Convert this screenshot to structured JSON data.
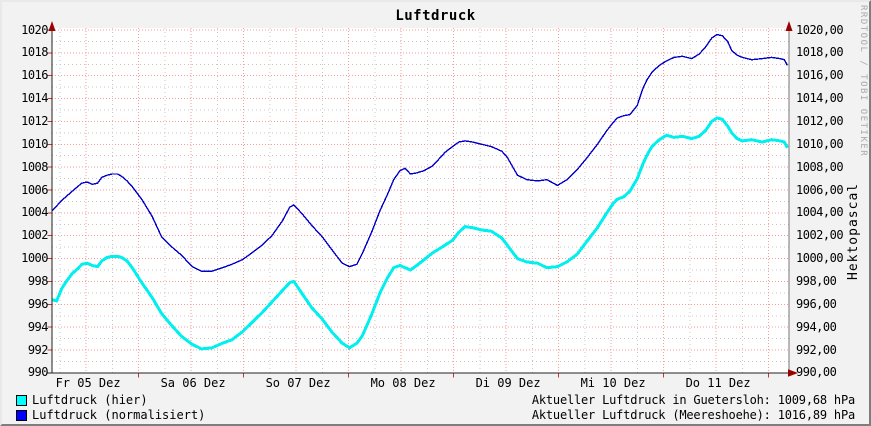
{
  "title": "Luftdruck",
  "watermark": "RRDTOOL / TOBI OETIKER",
  "right_axis_label": "Hektopascal",
  "legend": [
    {
      "label": "Luftdruck (hier)",
      "color": "#00ffff"
    },
    {
      "label": "Luftdruck (normalisiert)",
      "color": "#0000ff"
    }
  ],
  "footer_lines": [
    "Aktueller Luftdruck in Guetersloh: 1009,68 hPa",
    "Aktueller Luftdruck (Meereshoehe): 1016,89 hPa"
  ],
  "colors": {
    "background": "#f2f2f2",
    "canvas": "#ffffff",
    "grid_major": "#f59c9c",
    "grid_minor": "#c8c8c8",
    "axis": "#222222",
    "right_axis": "#777777",
    "tick": "#c03a3a",
    "arrow": "#9b0000"
  },
  "chart_data": {
    "type": "line",
    "title": "Luftdruck",
    "ylabel_right": "Hektopascal",
    "unit": "hPa",
    "ylim": [
      990,
      1020
    ],
    "y_tick_step": 2,
    "x_range_days": [
      0.176,
      7.195
    ],
    "x_axis_note": "time axis, ca. 7 Tage: Fr 05 Dez bis Do 11 Dez, Gitter alle 6 h",
    "grid": "rot gestrichelt: 2 hPa / 12 h Hauptraster, grau gepunktet: 1 hPa / 6 h Nebenraster",
    "legend_position": "bottom-left",
    "y_ticks": [
      {
        "v": 1020,
        "left": "1020",
        "right": "1020,00"
      },
      {
        "v": 1018,
        "left": "1018",
        "right": "1018,00"
      },
      {
        "v": 1016,
        "left": "1016",
        "right": "1016,00"
      },
      {
        "v": 1014,
        "left": "1014",
        "right": "1014,00"
      },
      {
        "v": 1012,
        "left": "1012",
        "right": "1012,00"
      },
      {
        "v": 1010,
        "left": "1010",
        "right": "1010,00"
      },
      {
        "v": 1008,
        "left": "1008",
        "right": "1008,00"
      },
      {
        "v": 1006,
        "left": "1006",
        "right": "1006,00"
      },
      {
        "v": 1004,
        "left": "1004",
        "right": "1004,00"
      },
      {
        "v": 1002,
        "left": "1002",
        "right": "1002,00"
      },
      {
        "v": 1000,
        "left": "1000",
        "right": "1000,00"
      },
      {
        "v": 998,
        "left": "998",
        "right": "998,00"
      },
      {
        "v": 996,
        "left": "996",
        "right": "996,00"
      },
      {
        "v": 994,
        "left": "994",
        "right": "994,00"
      },
      {
        "v": 992,
        "left": "992",
        "right": "992,00"
      },
      {
        "v": 990,
        "left": "990",
        "right": "990,00"
      }
    ],
    "x_ticks": [
      {
        "day": 0.52,
        "label": "Fr 05 Dez"
      },
      {
        "day": 1.52,
        "label": "Sa 06 Dez"
      },
      {
        "day": 2.52,
        "label": "So 07 Dez"
      },
      {
        "day": 3.52,
        "label": "Mo 08 Dez"
      },
      {
        "day": 4.52,
        "label": "Di 09 Dez"
      },
      {
        "day": 5.52,
        "label": "Mi 10 Dez"
      },
      {
        "day": 6.52,
        "label": "Do 11 Dez"
      }
    ],
    "series": [
      {
        "name": "Luftdruck (hier)",
        "color": "#00efef",
        "width": 3,
        "current": "1009,68 hPa",
        "points": [
          [
            0.18,
            996.4
          ],
          [
            0.22,
            996.3
          ],
          [
            0.27,
            997.4
          ],
          [
            0.32,
            998.1
          ],
          [
            0.37,
            998.7
          ],
          [
            0.42,
            999.1
          ],
          [
            0.46,
            999.5
          ],
          [
            0.51,
            999.6
          ],
          [
            0.56,
            999.4
          ],
          [
            0.61,
            999.3
          ],
          [
            0.65,
            999.8
          ],
          [
            0.7,
            1000.1
          ],
          [
            0.75,
            1000.2
          ],
          [
            0.8,
            1000.2
          ],
          [
            0.84,
            1000.1
          ],
          [
            0.89,
            999.8
          ],
          [
            0.94,
            999.2
          ],
          [
            1.03,
            997.9
          ],
          [
            1.13,
            996.6
          ],
          [
            1.22,
            995.2
          ],
          [
            1.32,
            994.1
          ],
          [
            1.41,
            993.2
          ],
          [
            1.51,
            992.5
          ],
          [
            1.6,
            992.1
          ],
          [
            1.7,
            992.2
          ],
          [
            1.8,
            992.6
          ],
          [
            1.89,
            992.9
          ],
          [
            1.99,
            993.6
          ],
          [
            2.08,
            994.4
          ],
          [
            2.18,
            995.3
          ],
          [
            2.27,
            996.2
          ],
          [
            2.37,
            997.2
          ],
          [
            2.44,
            997.9
          ],
          [
            2.48,
            998.0
          ],
          [
            2.56,
            996.9
          ],
          [
            2.65,
            995.7
          ],
          [
            2.75,
            994.7
          ],
          [
            2.84,
            993.6
          ],
          [
            2.94,
            992.6
          ],
          [
            3.01,
            992.2
          ],
          [
            3.08,
            992.6
          ],
          [
            3.13,
            993.2
          ],
          [
            3.22,
            995.1
          ],
          [
            3.3,
            997.0
          ],
          [
            3.37,
            998.3
          ],
          [
            3.43,
            999.2
          ],
          [
            3.49,
            999.4
          ],
          [
            3.59,
            999.0
          ],
          [
            3.65,
            999.4
          ],
          [
            3.72,
            999.9
          ],
          [
            3.8,
            1000.5
          ],
          [
            3.89,
            1001.0
          ],
          [
            3.99,
            1001.6
          ],
          [
            4.05,
            1002.3
          ],
          [
            4.11,
            1002.8
          ],
          [
            4.18,
            1002.7
          ],
          [
            4.27,
            1002.5
          ],
          [
            4.36,
            1002.4
          ],
          [
            4.46,
            1001.8
          ],
          [
            4.55,
            1000.7
          ],
          [
            4.61,
            1000.0
          ],
          [
            4.7,
            999.7
          ],
          [
            4.8,
            999.6
          ],
          [
            4.89,
            999.2
          ],
          [
            4.99,
            999.3
          ],
          [
            5.08,
            999.7
          ],
          [
            5.18,
            1000.4
          ],
          [
            5.27,
            1001.5
          ],
          [
            5.37,
            1002.7
          ],
          [
            5.46,
            1004.0
          ],
          [
            5.52,
            1004.8
          ],
          [
            5.56,
            1005.2
          ],
          [
            5.62,
            1005.4
          ],
          [
            5.68,
            1005.9
          ],
          [
            5.75,
            1007.0
          ],
          [
            5.8,
            1008.2
          ],
          [
            5.84,
            1009.0
          ],
          [
            5.89,
            1009.8
          ],
          [
            5.96,
            1010.4
          ],
          [
            6.03,
            1010.8
          ],
          [
            6.1,
            1010.6
          ],
          [
            6.18,
            1010.7
          ],
          [
            6.27,
            1010.5
          ],
          [
            6.34,
            1010.7
          ],
          [
            6.4,
            1011.2
          ],
          [
            6.46,
            1012.0
          ],
          [
            6.51,
            1012.3
          ],
          [
            6.56,
            1012.2
          ],
          [
            6.61,
            1011.6
          ],
          [
            6.65,
            1011.0
          ],
          [
            6.7,
            1010.5
          ],
          [
            6.75,
            1010.3
          ],
          [
            6.84,
            1010.4
          ],
          [
            6.94,
            1010.2
          ],
          [
            7.03,
            1010.4
          ],
          [
            7.11,
            1010.3
          ],
          [
            7.15,
            1010.2
          ],
          [
            7.18,
            1009.7
          ]
        ]
      },
      {
        "name": "Luftdruck (normalisiert)",
        "color": "#0000c8",
        "width": 1.4,
        "current": "1016,89 hPa",
        "points": [
          [
            0.18,
            1004.2
          ],
          [
            0.22,
            1004.6
          ],
          [
            0.27,
            1005.1
          ],
          [
            0.32,
            1005.5
          ],
          [
            0.37,
            1005.9
          ],
          [
            0.42,
            1006.3
          ],
          [
            0.46,
            1006.6
          ],
          [
            0.51,
            1006.7
          ],
          [
            0.56,
            1006.5
          ],
          [
            0.61,
            1006.6
          ],
          [
            0.65,
            1007.1
          ],
          [
            0.7,
            1007.3
          ],
          [
            0.75,
            1007.4
          ],
          [
            0.8,
            1007.4
          ],
          [
            0.84,
            1007.2
          ],
          [
            0.89,
            1006.8
          ],
          [
            0.94,
            1006.3
          ],
          [
            1.03,
            1005.2
          ],
          [
            1.13,
            1003.7
          ],
          [
            1.22,
            1001.9
          ],
          [
            1.32,
            1001.0
          ],
          [
            1.41,
            1000.3
          ],
          [
            1.51,
            999.3
          ],
          [
            1.6,
            998.9
          ],
          [
            1.7,
            998.9
          ],
          [
            1.8,
            999.2
          ],
          [
            1.89,
            999.5
          ],
          [
            1.99,
            999.9
          ],
          [
            2.08,
            1000.5
          ],
          [
            2.18,
            1001.2
          ],
          [
            2.27,
            1002.0
          ],
          [
            2.37,
            1003.3
          ],
          [
            2.44,
            1004.5
          ],
          [
            2.48,
            1004.7
          ],
          [
            2.56,
            1003.9
          ],
          [
            2.65,
            1002.9
          ],
          [
            2.75,
            1001.9
          ],
          [
            2.84,
            1000.8
          ],
          [
            2.94,
            999.6
          ],
          [
            3.01,
            999.3
          ],
          [
            3.08,
            999.5
          ],
          [
            3.13,
            1000.4
          ],
          [
            3.22,
            1002.3
          ],
          [
            3.3,
            1004.2
          ],
          [
            3.37,
            1005.6
          ],
          [
            3.43,
            1006.9
          ],
          [
            3.49,
            1007.7
          ],
          [
            3.54,
            1007.9
          ],
          [
            3.59,
            1007.4
          ],
          [
            3.65,
            1007.5
          ],
          [
            3.72,
            1007.7
          ],
          [
            3.8,
            1008.1
          ],
          [
            3.86,
            1008.7
          ],
          [
            3.92,
            1009.3
          ],
          [
            3.99,
            1009.8
          ],
          [
            4.05,
            1010.2
          ],
          [
            4.11,
            1010.3
          ],
          [
            4.18,
            1010.2
          ],
          [
            4.27,
            1010.0
          ],
          [
            4.36,
            1009.8
          ],
          [
            4.46,
            1009.4
          ],
          [
            4.51,
            1008.9
          ],
          [
            4.61,
            1007.3
          ],
          [
            4.7,
            1006.9
          ],
          [
            4.8,
            1006.8
          ],
          [
            4.89,
            1006.9
          ],
          [
            4.99,
            1006.4
          ],
          [
            5.08,
            1006.9
          ],
          [
            5.18,
            1007.8
          ],
          [
            5.27,
            1008.8
          ],
          [
            5.37,
            1010.0
          ],
          [
            5.46,
            1011.2
          ],
          [
            5.52,
            1011.9
          ],
          [
            5.56,
            1012.3
          ],
          [
            5.62,
            1012.5
          ],
          [
            5.68,
            1012.6
          ],
          [
            5.75,
            1013.4
          ],
          [
            5.8,
            1014.8
          ],
          [
            5.84,
            1015.6
          ],
          [
            5.89,
            1016.3
          ],
          [
            5.96,
            1016.9
          ],
          [
            6.03,
            1017.3
          ],
          [
            6.1,
            1017.6
          ],
          [
            6.18,
            1017.7
          ],
          [
            6.27,
            1017.5
          ],
          [
            6.34,
            1017.9
          ],
          [
            6.4,
            1018.5
          ],
          [
            6.46,
            1019.3
          ],
          [
            6.51,
            1019.6
          ],
          [
            6.56,
            1019.5
          ],
          [
            6.61,
            1019.0
          ],
          [
            6.65,
            1018.2
          ],
          [
            6.7,
            1017.8
          ],
          [
            6.75,
            1017.6
          ],
          [
            6.84,
            1017.4
          ],
          [
            6.94,
            1017.5
          ],
          [
            7.03,
            1017.6
          ],
          [
            7.11,
            1017.5
          ],
          [
            7.15,
            1017.4
          ],
          [
            7.18,
            1016.9
          ]
        ]
      }
    ]
  }
}
